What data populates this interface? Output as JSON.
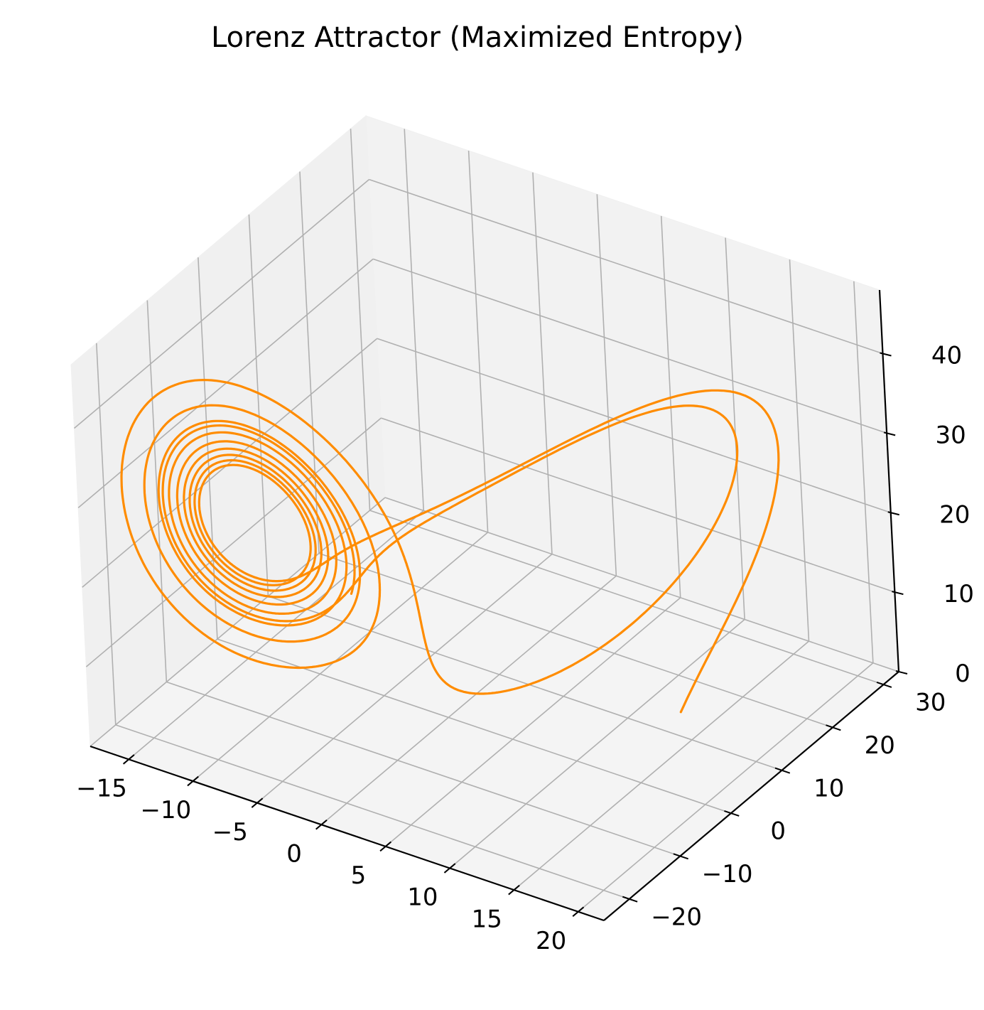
{
  "chart_data": {
    "type": "line",
    "projection": "3d",
    "title": "Lorenz Attractor (Maximized Entropy)",
    "xlabel": "",
    "ylabel": "",
    "zlabel": "",
    "xlim": [
      -18,
      22
    ],
    "ylim": [
      -25,
      33
    ],
    "zlim": [
      0,
      48
    ],
    "x_ticks": [
      -15,
      -10,
      -5,
      0,
      5,
      10,
      15,
      20
    ],
    "x_tick_labels": [
      "−15",
      "−10",
      "−5",
      "0",
      "5",
      "10",
      "15",
      "20"
    ],
    "y_ticks": [
      -20,
      -10,
      0,
      10,
      20,
      30
    ],
    "y_tick_labels": [
      "−20",
      "−10",
      "0",
      "10",
      "20",
      "30"
    ],
    "z_ticks": [
      0,
      10,
      20,
      30,
      40
    ],
    "z_tick_labels": [
      "0",
      "10",
      "20",
      "30",
      "40"
    ],
    "grid": true,
    "pane_color": "#f2f2f2",
    "grid_color": "#b0b0b0",
    "series": [
      {
        "color": "#ff8c00",
        "model": "lorenz",
        "sigma": 10,
        "rho": 28,
        "beta": 2.6667,
        "initial_state": [
          14,
          14,
          8
        ],
        "dt": 0.0025,
        "steps": 3200,
        "x_range": [
          -18,
          18
        ],
        "z_range": [
          0,
          45
        ]
      }
    ]
  }
}
